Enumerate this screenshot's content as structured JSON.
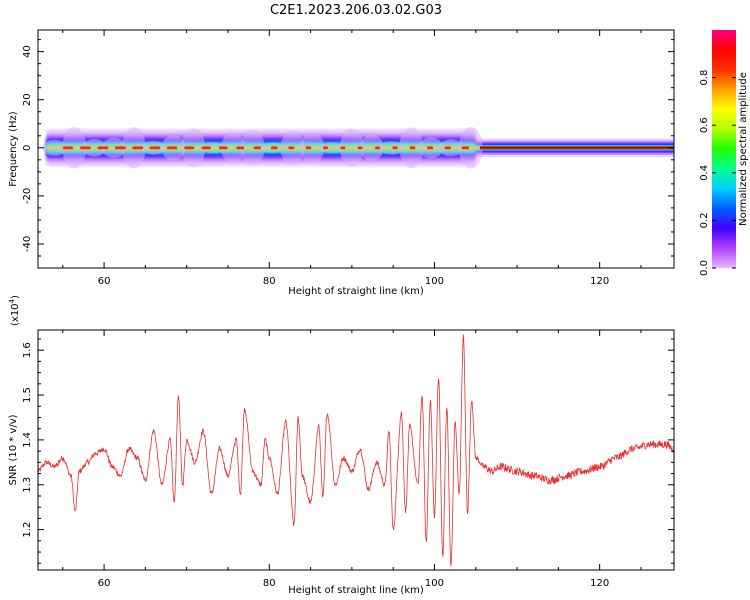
{
  "page_title": "C2E1.2023.206.03.02.G03",
  "chart_data": [
    {
      "type": "heatmap",
      "xlabel": "Height of straight line (km)",
      "ylabel": "Frequency (Hz)",
      "xlim": [
        52,
        129
      ],
      "ylim": [
        -50,
        49
      ],
      "x_ticks": [
        60,
        80,
        100,
        120
      ],
      "y_ticks": [
        40,
        20,
        0,
        -20,
        -40
      ],
      "signal_band": {
        "frequency_hz": 0,
        "x_start": 53,
        "x_end": 129,
        "spread_hz_before_105km": 3,
        "spread_hz_after_105km": 1.5
      },
      "colorbar": {
        "label": "Normalized spectral amplitude",
        "range": [
          0,
          1
        ],
        "ticks": [
          "0.0",
          "0.2",
          "0.4",
          "0.6",
          "0.8"
        ],
        "colors": [
          "#e8b8ff",
          "#b040ff",
          "#4000ff",
          "#0060ff",
          "#00d0ff",
          "#00ff90",
          "#20ff00",
          "#b0ff00",
          "#ffff00",
          "#ffa000",
          "#ff3000",
          "#ff0000",
          "#ff0080"
        ]
      }
    },
    {
      "type": "line",
      "xlabel": "Height of straight line (km)",
      "ylabel": "SNR (10 * v/v)",
      "y_multiplier": "(x10",
      "y_multiplier_exp": "4",
      "y_multiplier_close": ")",
      "xlim": [
        52,
        129
      ],
      "ylim": [
        1.11,
        1.645
      ],
      "x_ticks": [
        60,
        80,
        100,
        120
      ],
      "y_ticks": [
        "1.2",
        "1.3",
        "1.4",
        "1.5",
        "1.6"
      ],
      "line_color": "#e83030",
      "x": [
        52,
        53,
        54,
        55,
        56,
        56.5,
        57,
        58,
        59,
        60,
        61,
        62,
        63,
        64,
        65,
        66,
        67,
        68,
        68.5,
        69,
        69.5,
        70,
        71,
        72,
        73,
        74,
        75,
        76,
        76.5,
        77,
        78,
        79,
        79.5,
        80,
        81,
        82,
        83,
        83.5,
        84,
        85,
        86,
        86.5,
        87,
        88,
        89,
        90,
        91,
        92,
        93,
        94,
        94.5,
        95,
        96,
        96.5,
        97,
        98,
        98.5,
        99,
        99.5,
        100,
        100.5,
        101,
        101.5,
        102,
        102.5,
        103,
        103.5,
        104,
        104.5,
        105,
        106,
        107,
        108,
        110,
        112,
        114,
        116,
        118,
        120,
        122,
        124,
        126,
        128,
        129
      ],
      "y": [
        1.33,
        1.35,
        1.34,
        1.36,
        1.32,
        1.24,
        1.33,
        1.35,
        1.37,
        1.38,
        1.34,
        1.32,
        1.38,
        1.36,
        1.31,
        1.42,
        1.3,
        1.4,
        1.26,
        1.5,
        1.3,
        1.4,
        1.35,
        1.42,
        1.28,
        1.38,
        1.32,
        1.4,
        1.28,
        1.47,
        1.33,
        1.3,
        1.4,
        1.36,
        1.28,
        1.44,
        1.21,
        1.45,
        1.32,
        1.26,
        1.43,
        1.27,
        1.46,
        1.3,
        1.36,
        1.33,
        1.38,
        1.29,
        1.35,
        1.3,
        1.42,
        1.2,
        1.46,
        1.24,
        1.43,
        1.3,
        1.5,
        1.17,
        1.49,
        1.23,
        1.54,
        1.14,
        1.47,
        1.12,
        1.44,
        1.28,
        1.63,
        1.24,
        1.49,
        1.36,
        1.34,
        1.33,
        1.34,
        1.33,
        1.32,
        1.31,
        1.32,
        1.33,
        1.34,
        1.36,
        1.38,
        1.39,
        1.39,
        1.38
      ]
    }
  ]
}
